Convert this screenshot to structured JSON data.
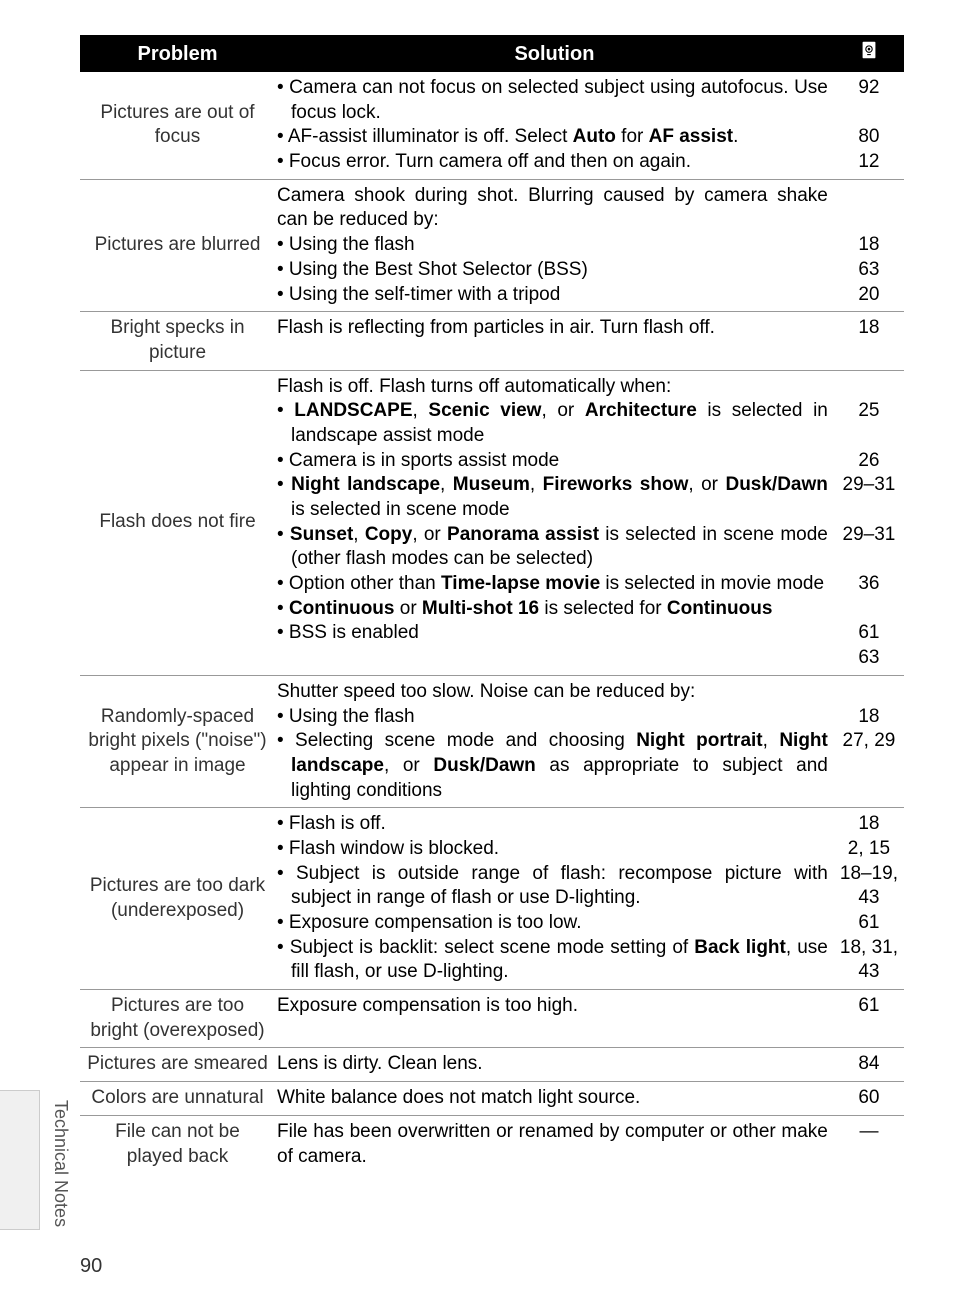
{
  "headers": {
    "problem": "Problem",
    "solution": "Solution",
    "page_icon": "page-ref-icon"
  },
  "sidebar": {
    "label": "Technical Notes"
  },
  "page_number": "90",
  "rows": [
    {
      "problem": "Pictures are out of focus",
      "solution_html": "<span class='bullet-line'>• Camera can not focus on selected subject using autofocus.  Use focus lock.</span><span class='bullet-line'>• AF-assist illuminator is off.  Select <strong>Auto</strong> for <strong>AF assist</strong>.</span><span class='bullet-line'>• Focus error.  Turn camera off and then on again.</span>",
      "pages_html": "<span class='page-multi'>92</span><span class='page-multi'>&nbsp;</span><span class='page-multi'>80</span><span class='page-multi'>12</span>"
    },
    {
      "problem": "Pictures are blurred",
      "solution_html": "<span class='intro-line'>Camera shook during shot.  Blurring caused by camera shake can be reduced by:</span><span class='bullet-line'>• Using the flash</span><span class='bullet-line'>• Using the Best Shot Selector (BSS)</span><span class='bullet-line'>• Using the self-timer with a tripod</span>",
      "pages_html": "<span class='page-multi'>&nbsp;</span><span class='page-multi'>&nbsp;</span><span class='page-multi'>18</span><span class='page-multi'>63</span><span class='page-multi'>20</span>"
    },
    {
      "problem": "Bright specks in picture",
      "solution_html": "<span class='intro-line'>Flash is reflecting from particles in air.  Turn flash off.</span>",
      "pages_html": "18"
    },
    {
      "problem": "Flash does not fire",
      "solution_html": "<span class='intro-line'>Flash is off.  Flash turns off automatically when:</span><span class='bullet-line'>• <strong>LANDSCAPE</strong>, <strong>Scenic view</strong>, or <strong>Architecture</strong> is selected in landscape assist mode</span><span class='bullet-line'>• Camera is in sports assist mode</span><span class='bullet-line'>• <strong>Night landscape</strong>, <strong>Museum</strong>, <strong>Fireworks show</strong>, or <strong>Dusk/Dawn</strong> is selected in scene mode</span><span class='bullet-line'>• <strong>Sunset</strong>, <strong>Copy</strong>, or <strong>Panorama assist</strong> is selected in scene mode (other flash modes can be selected)</span><span class='bullet-line'>• Option other than <strong>Time-lapse movie</strong> is selected in movie mode</span><span class='bullet-line'>• <strong>Continuous</strong> or <strong>Multi-shot 16</strong> is selected for <strong>Continuous</strong></span><span class='bullet-line'>• BSS is enabled</span>",
      "pages_html": "<span class='page-multi'>&nbsp;</span><span class='page-multi'>25</span><span class='page-multi'>&nbsp;</span><span class='page-multi'>26</span><span class='page-multi'>29–31</span><span class='page-multi'>&nbsp;</span><span class='page-multi'>29–31</span><span class='page-multi'>&nbsp;</span><span class='page-multi'>36</span><span class='page-multi'>&nbsp;</span><span class='page-multi'>61</span><span class='page-multi'>63</span>"
    },
    {
      "problem": "Randomly-spaced bright pixels (\"noise\") appear in image",
      "solution_html": "<span class='intro-line'>Shutter speed too slow.  Noise can be reduced by:</span><span class='bullet-line'>• Using the flash</span><span class='bullet-line'>• Selecting scene mode and choosing <strong>Night portrait</strong>, <strong>Night landscape</strong>, or <strong>Dusk/Dawn</strong> as appropriate to subject and lighting conditions</span>",
      "pages_html": "<span class='page-multi'>&nbsp;</span><span class='page-multi'>18</span><span class='page-multi'>27, 29</span>"
    },
    {
      "problem": "Pictures are too dark (underexposed)",
      "solution_html": "<span class='bullet-line'>• Flash is off.</span><span class='bullet-line'>• Flash window is blocked.</span><span class='bullet-line'>• Subject is outside range of flash: recompose picture with subject in range of flash or use D-lighting.</span><span class='bullet-line'>• Exposure compensation is too low.</span><span class='bullet-line'>• Subject is backlit: select scene mode setting of <strong>Back light</strong>, use fill flash, or use D-lighting.</span>",
      "pages_html": "<span class='page-multi'>18</span><span class='page-multi'>2, 15</span><span class='page-multi'>18–19,</span><span class='page-multi'>43</span><span class='page-multi'>61</span><span class='page-multi'>18, 31,</span><span class='page-multi'>43</span>"
    },
    {
      "problem": "Pictures are too bright (overexposed)",
      "solution_html": "<span class='intro-line'>Exposure compensation is too high.</span>",
      "pages_html": "61"
    },
    {
      "problem": "Pictures are smeared",
      "solution_html": "<span class='intro-line'>Lens is dirty.  Clean lens.</span>",
      "pages_html": "84"
    },
    {
      "problem": "Colors are unnatural",
      "solution_html": "<span class='intro-line'>White balance does not match light source.</span>",
      "pages_html": "60"
    },
    {
      "problem": "File can not be played back",
      "solution_html": "<span class='intro-line'>File has been overwritten or renamed by computer or other make of camera.</span>",
      "pages_html": "—"
    }
  ],
  "styling": {
    "header_bg": "#000000",
    "header_fg": "#ffffff",
    "body_font_size": 19,
    "header_font_size": 20,
    "border_color": "#999999",
    "sidebar_bg": "#f0f0f0"
  }
}
